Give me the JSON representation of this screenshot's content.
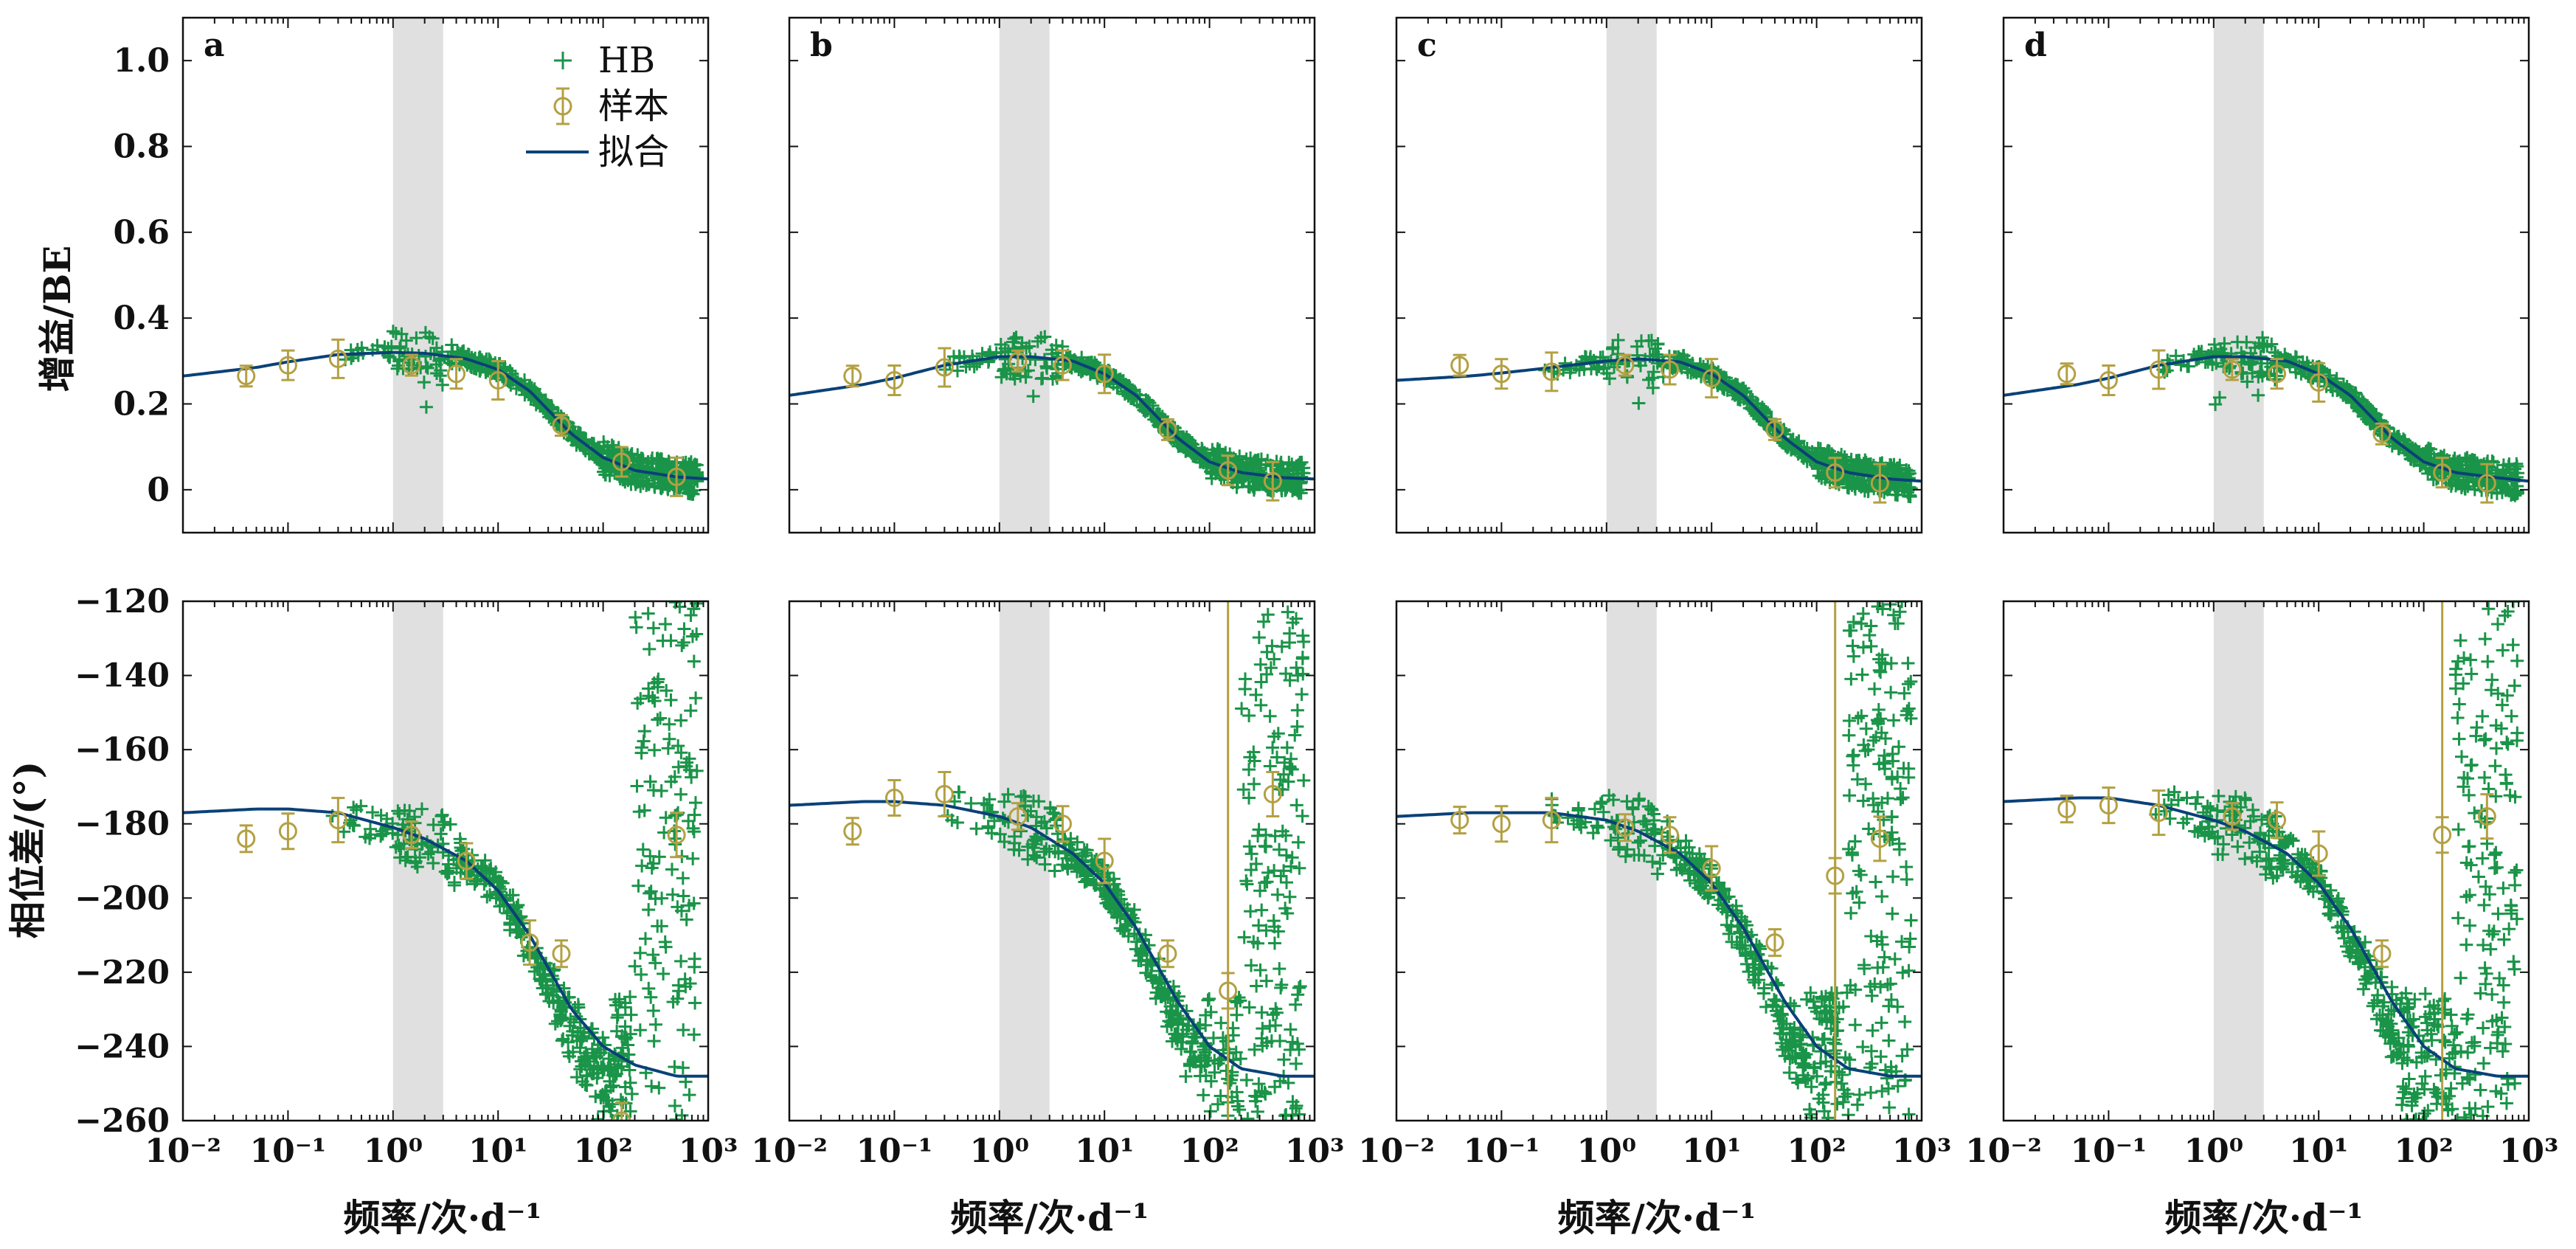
{
  "figure": {
    "xlabel": "频率/次·d⁻¹",
    "ylabel_top": "增益/BE",
    "ylabel_bottom": "相位差/(°)",
    "panel_letters": [
      "a",
      "b",
      "c",
      "d"
    ],
    "legend": {
      "hb": "HB",
      "sample": "样本",
      "fit": "拟合"
    },
    "colors": {
      "hb": "#1a9448",
      "sample": "#b3a043",
      "fit": "#0a4178",
      "band": "#e0e0e0"
    },
    "x_tick_labels": [
      "10⁻²",
      "10⁻¹",
      "10⁰",
      "10¹",
      "10²",
      "10³"
    ],
    "gain_tick_labels": [
      "0",
      "0.2",
      "0.4",
      "0.6",
      "0.8",
      "1.0"
    ],
    "phase_tick_labels": [
      "−260",
      "−240",
      "−220",
      "−200",
      "−180",
      "−160",
      "−140",
      "−120"
    ]
  },
  "chart_data": [
    {
      "panel": "a",
      "type": "scatter",
      "quantity": "gain",
      "xscale": "log",
      "xlim": [
        0.01,
        1000
      ],
      "ylim": [
        -0.1,
        1.1
      ],
      "shaded_band": [
        1,
        3
      ],
      "fit": {
        "x": [
          0.01,
          0.05,
          0.1,
          0.3,
          1,
          2,
          5,
          10,
          20,
          50,
          100,
          200,
          500,
          1000
        ],
        "y": [
          0.265,
          0.285,
          0.298,
          0.315,
          0.32,
          0.318,
          0.305,
          0.28,
          0.23,
          0.13,
          0.075,
          0.045,
          0.03,
          0.025
        ]
      },
      "sample": {
        "x": [
          0.04,
          0.1,
          0.3,
          1.5,
          4,
          10,
          40,
          150,
          500
        ],
        "y": [
          0.265,
          0.29,
          0.305,
          0.29,
          0.27,
          0.255,
          0.15,
          0.065,
          0.03
        ]
      }
    },
    {
      "panel": "b",
      "type": "scatter",
      "quantity": "gain",
      "xscale": "log",
      "xlim": [
        0.01,
        1000
      ],
      "ylim": [
        -0.1,
        1.1
      ],
      "shaded_band": [
        1,
        3
      ],
      "fit": {
        "x": [
          0.01,
          0.05,
          0.1,
          0.3,
          1,
          2,
          5,
          10,
          20,
          50,
          100,
          200,
          500,
          1000
        ],
        "y": [
          0.22,
          0.245,
          0.26,
          0.29,
          0.31,
          0.31,
          0.3,
          0.27,
          0.22,
          0.12,
          0.065,
          0.04,
          0.028,
          0.025
        ]
      },
      "sample": {
        "x": [
          0.04,
          0.1,
          0.3,
          1.5,
          4,
          10,
          40,
          150,
          400
        ],
        "y": [
          0.265,
          0.255,
          0.285,
          0.3,
          0.29,
          0.27,
          0.14,
          0.045,
          0.02
        ]
      }
    },
    {
      "panel": "c",
      "type": "scatter",
      "quantity": "gain",
      "xscale": "log",
      "xlim": [
        0.01,
        1000
      ],
      "ylim": [
        -0.1,
        1.1
      ],
      "shaded_band": [
        1,
        3
      ],
      "fit": {
        "x": [
          0.01,
          0.05,
          0.1,
          0.3,
          1,
          2,
          5,
          10,
          20,
          50,
          100,
          200,
          500,
          1000
        ],
        "y": [
          0.255,
          0.265,
          0.272,
          0.285,
          0.3,
          0.305,
          0.298,
          0.27,
          0.22,
          0.12,
          0.065,
          0.04,
          0.025,
          0.02
        ]
      },
      "sample": {
        "x": [
          0.04,
          0.1,
          0.3,
          1.5,
          4,
          10,
          40,
          150,
          400
        ],
        "y": [
          0.29,
          0.27,
          0.275,
          0.29,
          0.28,
          0.26,
          0.14,
          0.04,
          0.015
        ]
      }
    },
    {
      "panel": "d",
      "type": "scatter",
      "quantity": "gain",
      "xscale": "log",
      "xlim": [
        0.01,
        1000
      ],
      "ylim": [
        -0.1,
        1.1
      ],
      "shaded_band": [
        1,
        3
      ],
      "fit": {
        "x": [
          0.01,
          0.05,
          0.1,
          0.3,
          1,
          2,
          5,
          10,
          20,
          50,
          100,
          200,
          500,
          1000
        ],
        "y": [
          0.22,
          0.245,
          0.26,
          0.29,
          0.31,
          0.31,
          0.3,
          0.27,
          0.22,
          0.12,
          0.065,
          0.04,
          0.028,
          0.02
        ]
      },
      "sample": {
        "x": [
          0.04,
          0.1,
          0.3,
          1.5,
          4,
          10,
          40,
          150,
          400
        ],
        "y": [
          0.27,
          0.255,
          0.28,
          0.28,
          0.27,
          0.25,
          0.13,
          0.04,
          0.015
        ]
      }
    },
    {
      "panel": "a",
      "type": "scatter",
      "quantity": "phase",
      "xscale": "log",
      "xlim": [
        0.01,
        1000
      ],
      "ylim": [
        -260,
        -120
      ],
      "shaded_band": [
        1,
        3
      ],
      "fit": {
        "x": [
          0.01,
          0.05,
          0.1,
          0.3,
          1,
          2,
          5,
          10,
          20,
          50,
          100,
          200,
          500,
          1000
        ],
        "y": [
          -177,
          -176,
          -176,
          -177,
          -181,
          -184,
          -190,
          -198,
          -210,
          -230,
          -240,
          -245,
          -248,
          -248
        ]
      },
      "sample": {
        "x": [
          0.04,
          0.1,
          0.3,
          1.5,
          5,
          20,
          40,
          150,
          500
        ],
        "y": [
          -184,
          -182,
          -179,
          -183,
          -190,
          -212,
          -215,
          -260,
          -183
        ]
      }
    },
    {
      "panel": "b",
      "type": "scatter",
      "quantity": "phase",
      "xscale": "log",
      "xlim": [
        0.01,
        1000
      ],
      "ylim": [
        -260,
        -120
      ],
      "shaded_band": [
        1,
        3
      ],
      "fit": {
        "x": [
          0.01,
          0.05,
          0.1,
          0.3,
          1,
          2,
          5,
          10,
          20,
          50,
          100,
          200,
          500,
          1000
        ],
        "y": [
          -175,
          -174,
          -174,
          -175,
          -178,
          -181,
          -188,
          -196,
          -208,
          -228,
          -240,
          -246,
          -248,
          -248
        ]
      },
      "sample": {
        "x": [
          0.04,
          0.1,
          0.3,
          1.5,
          4,
          10,
          40,
          150,
          400
        ],
        "y": [
          -182,
          -173,
          -172,
          -178,
          -180,
          -190,
          -215,
          -225,
          -172
        ]
      }
    },
    {
      "panel": "c",
      "type": "scatter",
      "quantity": "phase",
      "xscale": "log",
      "xlim": [
        0.01,
        1000
      ],
      "ylim": [
        -260,
        -120
      ],
      "shaded_band": [
        1,
        3
      ],
      "fit": {
        "x": [
          0.01,
          0.05,
          0.1,
          0.3,
          1,
          2,
          5,
          10,
          20,
          50,
          100,
          200,
          500,
          1000
        ],
        "y": [
          -178,
          -177,
          -177,
          -177,
          -179,
          -182,
          -188,
          -196,
          -208,
          -228,
          -240,
          -246,
          -248,
          -248
        ]
      },
      "sample": {
        "x": [
          0.04,
          0.1,
          0.3,
          1.5,
          4,
          10,
          40,
          150,
          400
        ],
        "y": [
          -179,
          -180,
          -179,
          -181,
          -183,
          -192,
          -212,
          -194,
          -184
        ]
      }
    },
    {
      "panel": "d",
      "type": "scatter",
      "quantity": "phase",
      "xscale": "log",
      "xlim": [
        0.01,
        1000
      ],
      "ylim": [
        -260,
        -120
      ],
      "shaded_band": [
        1,
        3
      ],
      "fit": {
        "x": [
          0.01,
          0.05,
          0.1,
          0.3,
          1,
          2,
          5,
          10,
          20,
          50,
          100,
          200,
          500,
          1000
        ],
        "y": [
          -174,
          -173,
          -173,
          -175,
          -179,
          -182,
          -188,
          -196,
          -208,
          -228,
          -240,
          -246,
          -248,
          -248
        ]
      },
      "sample": {
        "x": [
          0.04,
          0.1,
          0.3,
          1.5,
          4,
          10,
          40,
          150,
          400
        ],
        "y": [
          -176,
          -175,
          -177,
          -178,
          -179,
          -188,
          -215,
          -183,
          -178
        ]
      }
    }
  ]
}
